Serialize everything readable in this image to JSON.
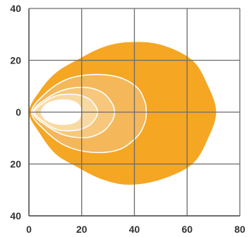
{
  "chart_data": {
    "type": "area",
    "title": "",
    "xlabel": "",
    "ylabel": "",
    "xlim": [
      0,
      80
    ],
    "ylim": [
      -40,
      40
    ],
    "grid": true,
    "x_ticks": [
      0,
      20,
      40,
      60,
      80
    ],
    "y_ticks": [
      {
        "value": 40,
        "label": "40"
      },
      {
        "value": 20,
        "label": "20"
      },
      {
        "value": 0,
        "label": "0"
      },
      {
        "value": -20,
        "label": "20"
      },
      {
        "value": -40,
        "label": "40"
      }
    ],
    "colors": {
      "outer": "#f5a623",
      "zone2": "#f4b75a",
      "zone3": "#f6c77c",
      "zone4": "#f9d9a2",
      "center": "#ffffff",
      "contour_line": "#ffffff",
      "grid": "#6b6b6b"
    },
    "zones": [
      {
        "id": "outer",
        "fill_key": "outer",
        "outline": false,
        "points": [
          [
            0,
            0
          ],
          [
            4,
            8
          ],
          [
            10,
            15
          ],
          [
            18,
            20
          ],
          [
            28,
            25
          ],
          [
            38,
            27
          ],
          [
            50,
            26
          ],
          [
            62,
            20
          ],
          [
            68,
            10
          ],
          [
            71,
            0
          ],
          [
            68,
            -10
          ],
          [
            62,
            -20
          ],
          [
            50,
            -26
          ],
          [
            38,
            -28
          ],
          [
            28,
            -26
          ],
          [
            18,
            -21
          ],
          [
            10,
            -16
          ],
          [
            4,
            -8
          ]
        ]
      },
      {
        "id": "zone2",
        "fill_key": "zone2",
        "outline": true,
        "points": [
          [
            1,
            0
          ],
          [
            6,
            7
          ],
          [
            14,
            12.5
          ],
          [
            24,
            14.5
          ],
          [
            34,
            13.5
          ],
          [
            41,
            9.5
          ],
          [
            44,
            4
          ],
          [
            44.5,
            0
          ],
          [
            44,
            -4
          ],
          [
            41,
            -9.5
          ],
          [
            34,
            -14.5
          ],
          [
            24,
            -15.5
          ],
          [
            14,
            -13
          ],
          [
            6,
            -7
          ]
        ]
      },
      {
        "id": "zone3",
        "fill_key": "zone3",
        "outline": true,
        "points": [
          [
            1.5,
            0
          ],
          [
            7,
            5.5
          ],
          [
            14,
            8.8
          ],
          [
            22,
            9.5
          ],
          [
            28,
            7.5
          ],
          [
            31.5,
            3.5
          ],
          [
            32.5,
            0
          ],
          [
            31.5,
            -3.5
          ],
          [
            28,
            -7.5
          ],
          [
            22,
            -9.8
          ],
          [
            14,
            -9
          ],
          [
            7,
            -5.5
          ]
        ]
      },
      {
        "id": "zone4",
        "fill_key": "zone4",
        "outline": true,
        "points": [
          [
            2,
            0
          ],
          [
            6,
            4
          ],
          [
            11,
            6.5
          ],
          [
            18,
            6.8
          ],
          [
            23,
            5
          ],
          [
            25.5,
            2
          ],
          [
            26,
            0
          ],
          [
            25.5,
            -2
          ],
          [
            23,
            -5
          ],
          [
            18,
            -7
          ],
          [
            11,
            -6.8
          ],
          [
            6,
            -4
          ]
        ]
      },
      {
        "id": "center",
        "fill_key": "center",
        "outline": false,
        "points": [
          [
            4.5,
            0
          ],
          [
            6.5,
            3.2
          ],
          [
            11,
            4.8
          ],
          [
            16,
            4.6
          ],
          [
            19,
            3
          ],
          [
            20,
            0
          ],
          [
            19,
            -3
          ],
          [
            16,
            -4.6
          ],
          [
            11,
            -4.8
          ],
          [
            6.5,
            -3.2
          ]
        ]
      }
    ]
  }
}
